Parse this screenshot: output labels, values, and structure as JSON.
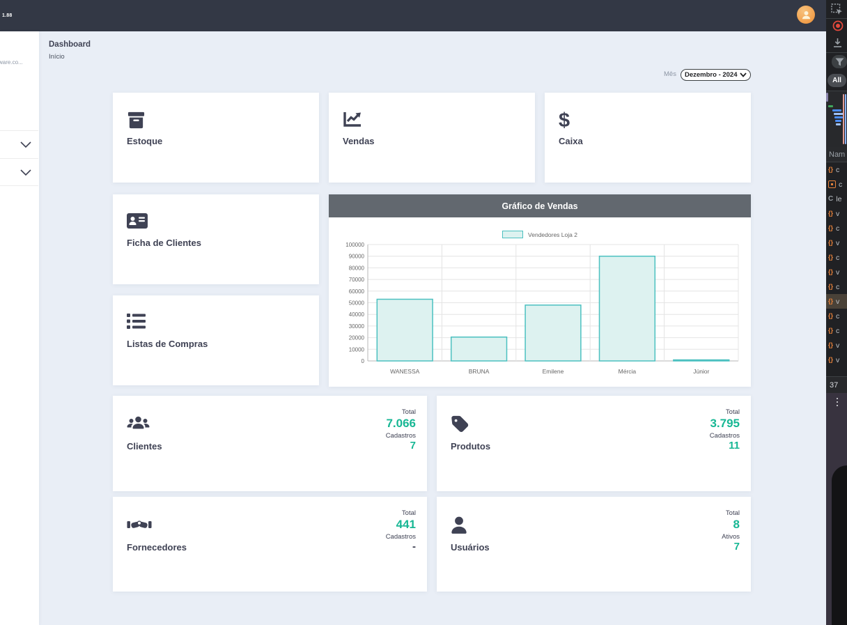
{
  "header": {
    "version_text": "1.88"
  },
  "sidebar": {
    "brand_text": "ware.co..."
  },
  "page": {
    "title": "Dashboard",
    "breadcrumb": "Início"
  },
  "month_filter": {
    "label": "Mês",
    "selected_option": "Dezembro - 2024"
  },
  "shortcut_cards": [
    {
      "label": "Estoque",
      "icon": "archive-box-icon"
    },
    {
      "label": "Vendas",
      "icon": "chart-line-icon"
    },
    {
      "label": "Caixa",
      "icon": "dollar-sign-icon"
    },
    {
      "label": "Ficha de Clientes",
      "icon": "address-card-icon"
    },
    {
      "label": "Listas de Compras",
      "icon": "list-icon"
    }
  ],
  "chart_panel": {
    "title": "Gráfico de Vendas"
  },
  "chart_data": {
    "type": "bar",
    "title": "Gráfico de Vendas",
    "categories": [
      "WANESSA",
      "BRUNA",
      "Emilene",
      "Mércia",
      "Júnior"
    ],
    "series": [
      {
        "name": "Vendedores Loja 2",
        "values": [
          53000,
          20500,
          48000,
          90000,
          700
        ]
      }
    ],
    "xlabel": "",
    "ylabel": "",
    "ylim": [
      0,
      100000
    ],
    "ytick_step": 10000,
    "grid": true,
    "legend_position": "top",
    "bar_fill": "#ddf2f0",
    "bar_border": "#4bc0c0"
  },
  "stat_cards": [
    {
      "label": "Clientes",
      "icon": "users-icon",
      "metric1_label": "Total",
      "metric1_value": "7.066",
      "metric2_label": "Cadastros",
      "metric2_value": "7"
    },
    {
      "label": "Produtos",
      "icon": "tag-icon",
      "metric1_label": "Total",
      "metric1_value": "3.795",
      "metric2_label": "Cadastros",
      "metric2_value": "11"
    },
    {
      "label": "Fornecedores",
      "icon": "handshake-icon",
      "metric1_label": "Total",
      "metric1_value": "441",
      "metric2_label": "Cadastros",
      "metric2_value": "-"
    },
    {
      "label": "Usuários",
      "icon": "user-icon",
      "metric1_label": "Total",
      "metric1_value": "8",
      "metric2_label": "Ativos",
      "metric2_value": "7"
    }
  ],
  "devtools": {
    "filter_all_label": "All",
    "name_column_label": "Nam",
    "request_count": "37",
    "requests": [
      {
        "icon": "braces-icon",
        "name": "c"
      },
      {
        "icon": "module-icon",
        "name": "c"
      },
      {
        "icon": "favicon-c",
        "name": "le"
      },
      {
        "icon": "braces-icon",
        "name": "v"
      },
      {
        "icon": "braces-icon",
        "name": "c"
      },
      {
        "icon": "braces-icon",
        "name": "v"
      },
      {
        "icon": "braces-icon",
        "name": "c"
      },
      {
        "icon": "braces-icon",
        "name": "v"
      },
      {
        "icon": "braces-icon",
        "name": "c"
      },
      {
        "icon": "braces-icon",
        "name": "v",
        "selected": true
      },
      {
        "icon": "braces-icon",
        "name": "c"
      },
      {
        "icon": "braces-icon",
        "name": "c"
      },
      {
        "icon": "braces-icon",
        "name": "v"
      },
      {
        "icon": "braces-icon",
        "name": "v"
      }
    ]
  },
  "colors": {
    "accent_teal": "#17b794",
    "header_bg": "#333845",
    "chart_header_bg": "#62686f",
    "bar_border": "#4bc0c0"
  }
}
